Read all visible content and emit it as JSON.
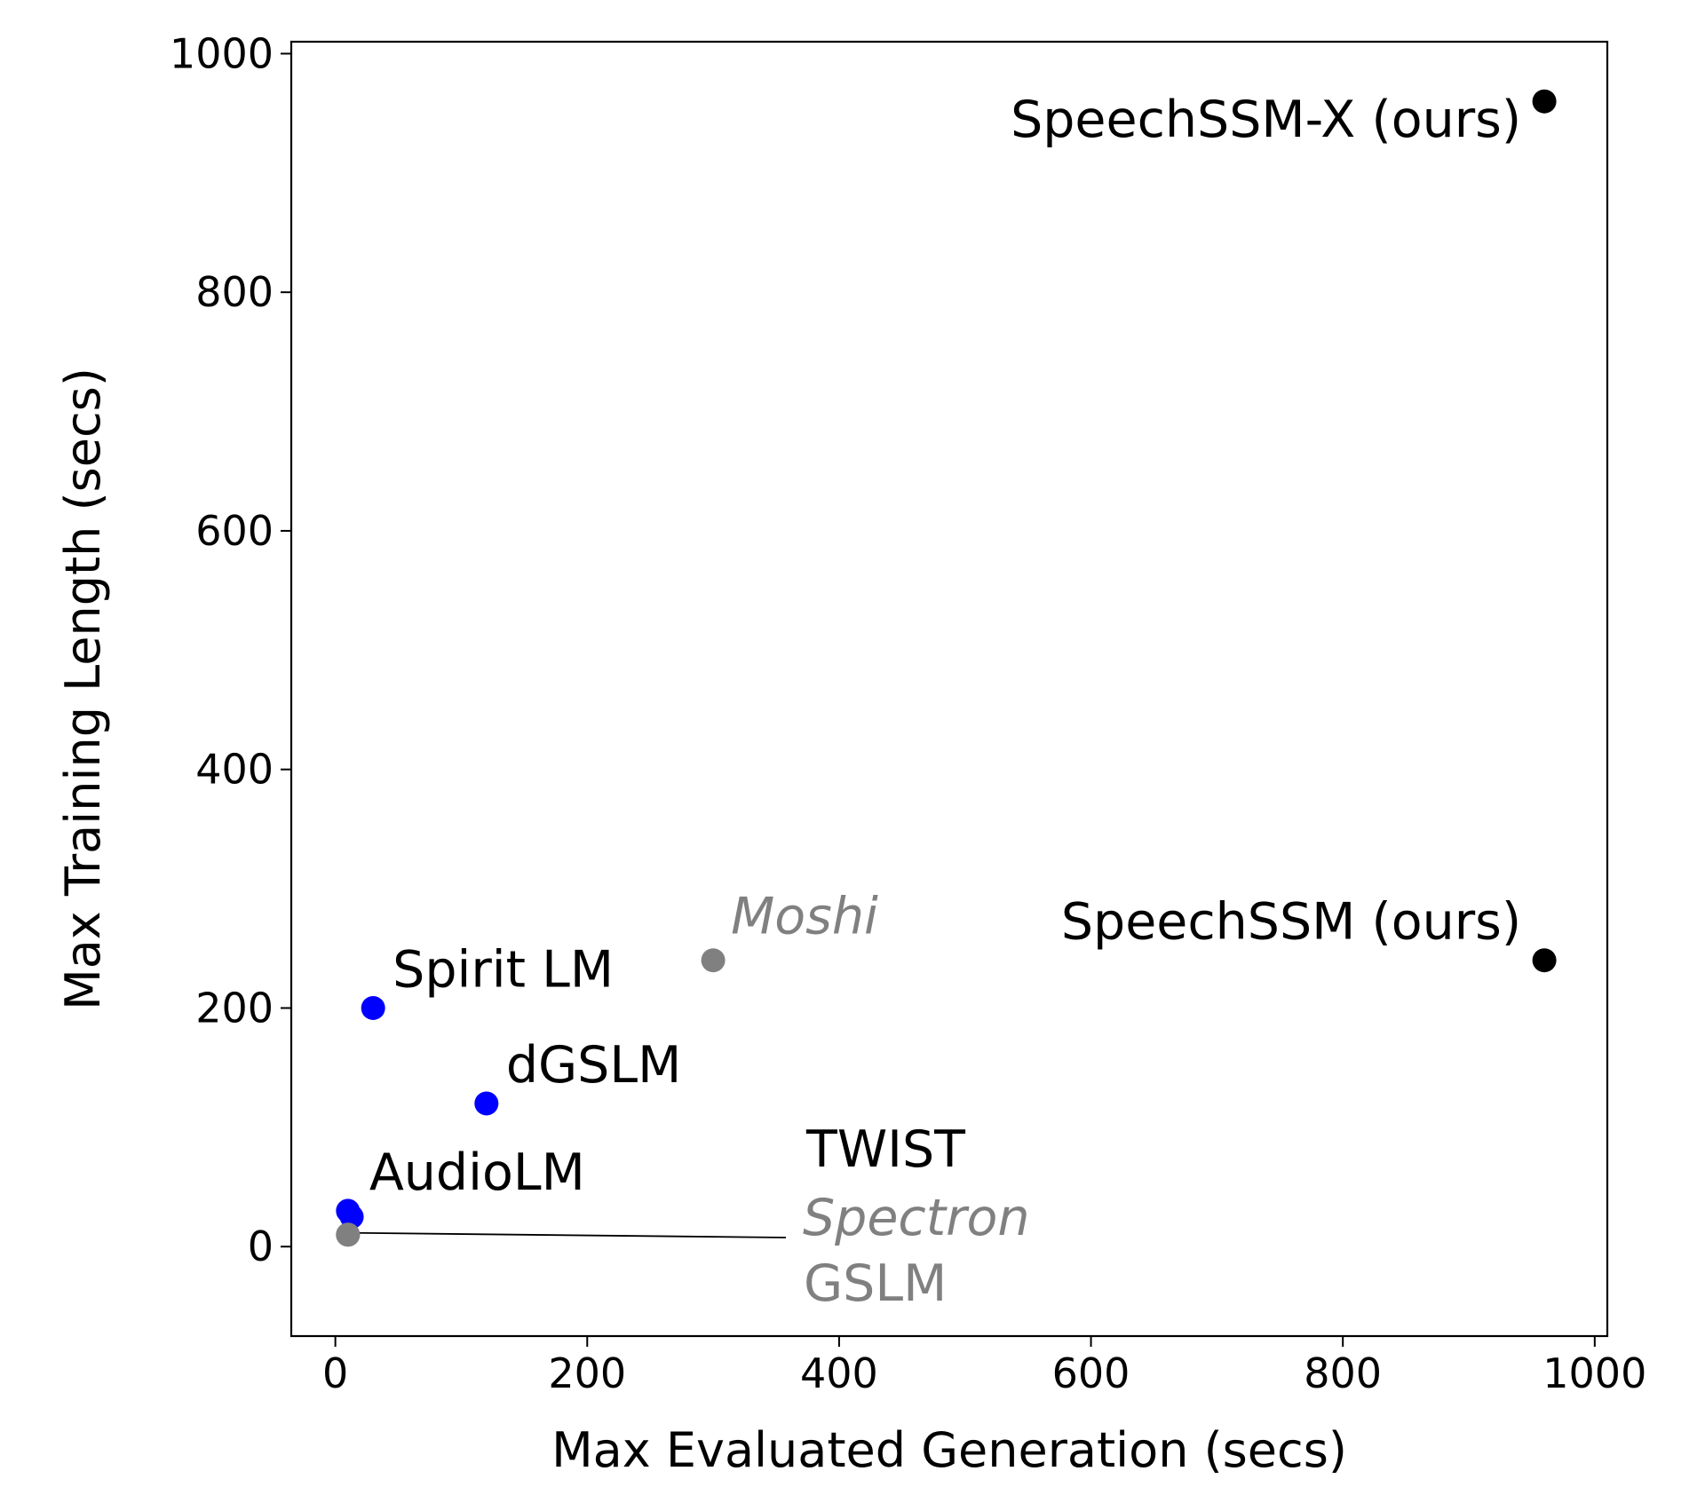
{
  "chart_data": {
    "type": "scatter",
    "xlabel": "Max Evaluated Generation (secs)",
    "ylabel": "Max Training Length (secs)",
    "xlim": [
      -35,
      1010
    ],
    "ylim": [
      -75,
      1010
    ],
    "x_ticks": [
      0,
      200,
      400,
      600,
      800,
      1000
    ],
    "y_ticks": [
      0,
      200,
      400,
      600,
      800,
      1000
    ],
    "points": [
      {
        "label": "SpeechSSM-X (ours)",
        "x": 960,
        "y": 960,
        "color": "#000000",
        "label_color": "#000000",
        "italic": false
      },
      {
        "label": "SpeechSSM (ours)",
        "x": 960,
        "y": 240,
        "color": "#000000",
        "label_color": "#000000",
        "italic": false
      },
      {
        "label": "Moshi",
        "x": 300,
        "y": 240,
        "color": "#808080",
        "label_color": "#808080",
        "italic": true
      },
      {
        "label": "Spirit LM",
        "x": 30,
        "y": 200,
        "color": "#0000ff",
        "label_color": "#000000",
        "italic": false
      },
      {
        "label": "dGSLM",
        "x": 120,
        "y": 120,
        "color": "#0000ff",
        "label_color": "#000000",
        "italic": false
      },
      {
        "label": "AudioLM",
        "x": 10,
        "y": 30,
        "color": "#0000ff",
        "label_color": "#000000",
        "italic": false
      },
      {
        "label": "TWIST",
        "x": 13,
        "y": 25,
        "color": "#0000ff",
        "label_color": "#000000",
        "italic": false
      },
      {
        "label": "Spectron",
        "x": 10,
        "y": 10,
        "color": "#808080",
        "label_color": "#808080",
        "italic": true
      },
      {
        "label": "GSLM",
        "x": 10,
        "y": 10,
        "color": "#808080",
        "label_color": "#808080",
        "italic": false
      }
    ]
  }
}
